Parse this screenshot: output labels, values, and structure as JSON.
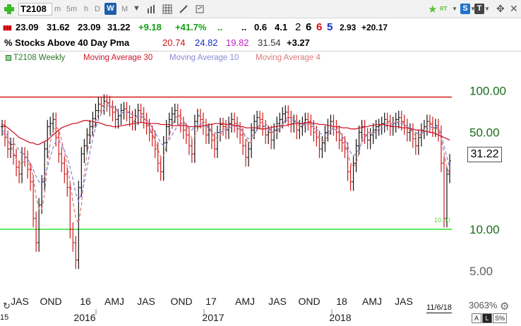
{
  "toolbar": {
    "add_icon": "green-plus-icon",
    "symbol": "T2108",
    "timeframes": [
      {
        "label": "m",
        "active": false
      },
      {
        "label": "5m",
        "active": false
      },
      {
        "label": "h",
        "active": false
      },
      {
        "label": "D",
        "active": false
      },
      {
        "label": "W",
        "active": true
      },
      {
        "label": "M",
        "active": false
      }
    ],
    "rt_label": "RT",
    "s_label": "S",
    "t_label": "T"
  },
  "quote": {
    "open": "23.09",
    "high": "31.62",
    "low": "23.09",
    "close": "31.22",
    "change": "+9.18",
    "change_pct": "+41.7%",
    "dots1": "..",
    "dots2": "..",
    "atr": "0.6",
    "v2": "4.1",
    "n1": "2",
    "n2": "6",
    "n3": "6",
    "n4": "5",
    "v3": "2.93",
    "v4": "+20.17",
    "colors": {
      "positive": "#12a012",
      "n1": "#222222",
      "n2": "#111111",
      "n3": "#d01010",
      "n4": "#1830c8"
    }
  },
  "indicator": {
    "name": "% Stocks Above 40 Day Pma",
    "v1": "20.74",
    "v2": "24.82",
    "v3": "19.82",
    "v4": "31.54",
    "v5": "+3.27",
    "colors": {
      "v1": "#d01010",
      "v2": "#1830c8",
      "v3": "#c020c0",
      "v4": "#333333",
      "v5": "#111111"
    }
  },
  "legend": [
    {
      "label": "T2108 Weekly",
      "color": "#2a7a2a"
    },
    {
      "label": "Moving Average 30",
      "color": "#d0182a"
    },
    {
      "label": "Moving Average 10",
      "color": "#8a8ad8"
    },
    {
      "label": "Moving Average 4",
      "color": "#e07878"
    }
  ],
  "chart_data": {
    "type": "line",
    "title": "% Stocks Above 40 Day Pma",
    "y_scale": "log",
    "ylim": [
      3.6,
      150
    ],
    "y_ticks": [
      "100.00",
      "50.00",
      "10.00",
      "5.00"
    ],
    "x_tick_labels": [
      "JAS",
      "OND",
      "16",
      "AMJ",
      "JAS",
      "OND",
      "17",
      "AMJ",
      "JAS",
      "OND",
      "18",
      "AMJ",
      "JAS"
    ],
    "year_labels": [
      "2016",
      "2017",
      "2018"
    ],
    "horizontal_lines": [
      {
        "value": 90,
        "color": "#d42828"
      },
      {
        "value": 10,
        "color": "#3ee83e",
        "label": "10.00"
      }
    ],
    "last_value": "31.22",
    "weekly": [
      55,
      46,
      38,
      41,
      34,
      28,
      25,
      35,
      33,
      27,
      22,
      12,
      8,
      15,
      22,
      38,
      55,
      58,
      62,
      46,
      35,
      30,
      25,
      20,
      10,
      8,
      6,
      20,
      35,
      40,
      48,
      55,
      63,
      72,
      80,
      78,
      84,
      82,
      76,
      70,
      62,
      66,
      72,
      74,
      70,
      64,
      60,
      66,
      72,
      68,
      62,
      56,
      50,
      46,
      38,
      30,
      26,
      42,
      55,
      62,
      68,
      72,
      66,
      58,
      52,
      48,
      40,
      35,
      60,
      66,
      62,
      56,
      48,
      52,
      44,
      38,
      50,
      57,
      55,
      52,
      58,
      62,
      58,
      53,
      48,
      40,
      33,
      38,
      52,
      60,
      64,
      62,
      55,
      48,
      50,
      44,
      52,
      58,
      62,
      68,
      70,
      64,
      58,
      60,
      52,
      55,
      58,
      62,
      60,
      55,
      50,
      46,
      38,
      42,
      50,
      56,
      60,
      55,
      50,
      44,
      42,
      38,
      26,
      22,
      30,
      40,
      50,
      55,
      48,
      44,
      48,
      52,
      55,
      56,
      58,
      62,
      60,
      55,
      58,
      62,
      64,
      60,
      56,
      50,
      52,
      45,
      40,
      46,
      52,
      55,
      60,
      58,
      54,
      56,
      50,
      30,
      12,
      25,
      31.22
    ],
    "ma30": [
      57,
      56,
      54,
      52,
      50,
      48,
      46,
      45,
      44,
      43,
      42,
      42,
      41,
      41,
      42,
      43,
      44,
      46,
      48,
      50,
      52,
      54,
      55,
      56,
      57,
      58,
      58,
      59,
      60,
      61,
      61,
      60,
      60,
      59,
      59,
      58,
      57,
      56,
      56,
      55,
      55,
      55,
      56,
      56,
      57,
      57,
      58,
      58,
      59,
      59,
      59,
      58,
      58,
      58,
      58,
      58,
      57,
      57,
      57,
      57,
      56,
      56,
      56,
      56,
      56,
      56,
      55,
      55,
      55,
      55,
      55,
      56,
      56,
      57,
      57,
      58,
      58,
      58,
      58,
      57,
      57,
      57,
      56,
      56,
      55,
      55,
      54,
      54,
      54,
      54,
      54,
      53,
      53,
      53,
      54,
      54,
      55,
      55,
      56,
      56,
      56,
      57,
      57,
      58,
      58,
      58,
      58,
      59,
      59,
      59,
      58,
      58,
      57,
      57,
      57,
      56,
      56,
      55,
      55,
      55,
      54,
      54,
      54,
      53,
      53,
      53,
      54,
      54,
      55,
      55,
      56,
      56,
      57,
      57,
      57,
      57,
      56,
      56,
      55,
      55,
      55,
      54,
      54,
      54,
      53,
      53,
      52,
      52,
      52,
      51,
      51,
      50,
      50,
      49,
      48,
      47,
      46,
      45,
      44
    ],
    "ma10": [
      52,
      50,
      47,
      44,
      42,
      40,
      37,
      35,
      34,
      32,
      30,
      27,
      24,
      22,
      22,
      24,
      28,
      33,
      39,
      43,
      44,
      41,
      37,
      33,
      28,
      23,
      18,
      16,
      18,
      22,
      28,
      36,
      45,
      54,
      62,
      68,
      74,
      77,
      79,
      78,
      75,
      72,
      70,
      69,
      70,
      69,
      67,
      66,
      66,
      65,
      64,
      62,
      58,
      54,
      50,
      46,
      42,
      40,
      41,
      44,
      48,
      52,
      56,
      58,
      58,
      57,
      54,
      52,
      55,
      57,
      58,
      57,
      55,
      54,
      52,
      50,
      49,
      50,
      51,
      52,
      54,
      55,
      56,
      55,
      53,
      50,
      47,
      45,
      46,
      49,
      52,
      55,
      56,
      55,
      53,
      51,
      51,
      52,
      54,
      57,
      60,
      62,
      62,
      61,
      60,
      58,
      57,
      57,
      58,
      58,
      56,
      53,
      50,
      48,
      48,
      50,
      52,
      53,
      52,
      50,
      47,
      44,
      40,
      36,
      34,
      35,
      38,
      42,
      46,
      48,
      49,
      50,
      51,
      52,
      53,
      55,
      56,
      57,
      58,
      59,
      59,
      58,
      57,
      55,
      54,
      52,
      50,
      49,
      49,
      50,
      52,
      54,
      55,
      55,
      54,
      48,
      40,
      33,
      28
    ],
    "ma4": [
      50,
      48,
      45,
      40,
      36,
      32,
      30,
      30,
      31,
      30,
      29,
      24,
      17,
      14,
      14,
      18,
      30,
      42,
      52,
      55,
      52,
      44,
      36,
      28,
      22,
      16,
      12,
      11,
      15,
      25,
      35,
      45,
      52,
      60,
      68,
      74,
      79,
      81,
      80,
      77,
      73,
      70,
      69,
      70,
      71,
      70,
      67,
      64,
      65,
      66,
      64,
      60,
      54,
      49,
      44,
      38,
      33,
      34,
      40,
      47,
      55,
      63,
      66,
      64,
      61,
      56,
      50,
      45,
      47,
      52,
      58,
      60,
      58,
      54,
      50,
      46,
      45,
      48,
      52,
      54,
      55,
      56,
      57,
      57,
      55,
      51,
      46,
      42,
      43,
      47,
      53,
      58,
      60,
      58,
      55,
      51,
      49,
      50,
      53,
      57,
      62,
      65,
      65,
      63,
      58,
      55,
      56,
      57,
      58,
      57,
      55,
      50,
      46,
      43,
      44,
      47,
      51,
      55,
      55,
      52,
      47,
      42,
      35,
      30,
      28,
      30,
      36,
      44,
      50,
      50,
      50,
      49,
      51,
      53,
      56,
      58,
      59,
      58,
      58,
      59,
      60,
      60,
      58,
      55,
      53,
      50,
      47,
      47,
      49,
      52,
      55,
      57,
      57,
      55,
      52,
      45,
      35,
      28,
      25
    ]
  },
  "bottom": {
    "date": "11/6/18",
    "zoom_pct": "3063%",
    "btn_a": "A",
    "btn_l": "L",
    "btn_s": "S%",
    "left_label": "15"
  }
}
